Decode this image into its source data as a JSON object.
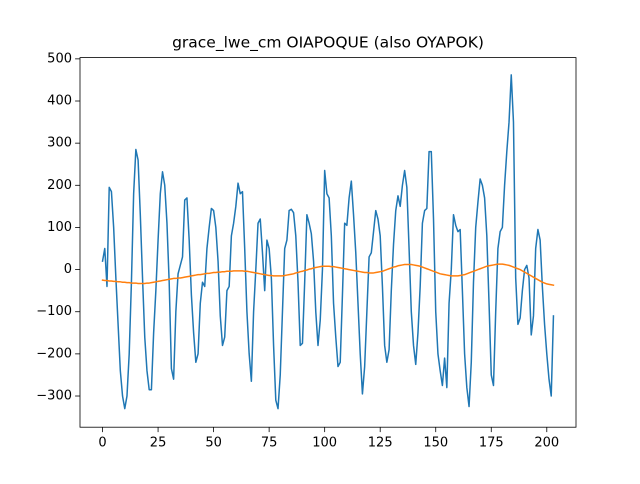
{
  "chart_data": {
    "type": "line",
    "title": "grace_lwe_cm OIAPOQUE (also OYAPOK)",
    "x": [
      0,
      1,
      2,
      3,
      4,
      5,
      6,
      7,
      8,
      9,
      10,
      11,
      12,
      13,
      14,
      15,
      16,
      17,
      18,
      19,
      20,
      21,
      22,
      23,
      24,
      25,
      26,
      27,
      28,
      29,
      30,
      31,
      32,
      33,
      34,
      35,
      36,
      37,
      38,
      39,
      40,
      41,
      42,
      43,
      44,
      45,
      46,
      47,
      48,
      49,
      50,
      51,
      52,
      53,
      54,
      55,
      56,
      57,
      58,
      59,
      60,
      61,
      62,
      63,
      64,
      65,
      66,
      67,
      68,
      69,
      70,
      71,
      72,
      73,
      74,
      75,
      76,
      77,
      78,
      79,
      80,
      81,
      82,
      83,
      84,
      85,
      86,
      87,
      88,
      89,
      90,
      91,
      92,
      93,
      94,
      95,
      96,
      97,
      98,
      99,
      100,
      101,
      102,
      103,
      104,
      105,
      106,
      107,
      108,
      109,
      110,
      111,
      112,
      113,
      114,
      115,
      116,
      117,
      118,
      119,
      120,
      121,
      122,
      123,
      124,
      125,
      126,
      127,
      128,
      129,
      130,
      131,
      132,
      133,
      134,
      135,
      136,
      137,
      138,
      139,
      140,
      141,
      142,
      143,
      144,
      145,
      146,
      147,
      148,
      149,
      150,
      151,
      152,
      153,
      154,
      155,
      156,
      157,
      158,
      159,
      160,
      161,
      162,
      163,
      164,
      165,
      166,
      167,
      168,
      169,
      170,
      171,
      172,
      173,
      174,
      175,
      176,
      177,
      178,
      179,
      180,
      181,
      182,
      183,
      184,
      185,
      186,
      187,
      188,
      189,
      190,
      191,
      192,
      193,
      194,
      195,
      196,
      197,
      198,
      199,
      200,
      201,
      202,
      203
    ],
    "series": [
      {
        "color": "#1f77b4",
        "values": [
          20,
          50,
          -40,
          195,
          185,
          100,
          -20,
          -130,
          -240,
          -300,
          -330,
          -300,
          -200,
          -30,
          180,
          285,
          260,
          130,
          -20,
          -160,
          -240,
          -285,
          -285,
          -150,
          -50,
          70,
          180,
          232,
          200,
          110,
          -30,
          -235,
          -260,
          -100,
          -10,
          10,
          30,
          165,
          170,
          70,
          -60,
          -150,
          -220,
          -200,
          -80,
          -30,
          -40,
          50,
          100,
          145,
          140,
          100,
          20,
          -110,
          -180,
          -160,
          -50,
          -40,
          80,
          110,
          150,
          205,
          180,
          185,
          50,
          -100,
          -200,
          -265,
          -100,
          0,
          110,
          120,
          40,
          -50,
          70,
          50,
          -20,
          -180,
          -310,
          -330,
          -250,
          -100,
          50,
          70,
          140,
          143,
          135,
          80,
          -30,
          -180,
          -175,
          -30,
          130,
          110,
          85,
          20,
          -100,
          -180,
          -120,
          0,
          235,
          180,
          170,
          80,
          -80,
          -160,
          -230,
          -220,
          -60,
          110,
          105,
          170,
          210,
          130,
          40,
          -80,
          -200,
          -295,
          -230,
          -100,
          30,
          40,
          90,
          140,
          120,
          80,
          -40,
          -180,
          -220,
          -190,
          -50,
          60,
          140,
          175,
          150,
          200,
          235,
          195,
          50,
          -100,
          -180,
          -225,
          -150,
          -40,
          110,
          140,
          145,
          280,
          280,
          120,
          -100,
          -200,
          -240,
          -275,
          -210,
          -280,
          -80,
          0,
          130,
          105,
          90,
          95,
          -50,
          -200,
          -280,
          -325,
          -220,
          -30,
          100,
          160,
          215,
          200,
          170,
          80,
          -80,
          -250,
          -275,
          -100,
          50,
          90,
          100,
          200,
          280,
          350,
          462,
          350,
          -20,
          -130,
          -115,
          -50,
          0,
          10,
          -20,
          -155,
          -110,
          50,
          95,
          70,
          -40,
          -130,
          -200,
          -260,
          -300,
          -110
        ]
      },
      {
        "color": "#ff7f0e",
        "values": [
          -25,
          -26,
          -26,
          -27,
          -27,
          -28,
          -28,
          -29,
          -29,
          -30,
          -30,
          -31,
          -31,
          -32,
          -32,
          -32,
          -33,
          -33,
          -33,
          -33,
          -32,
          -32,
          -31,
          -30,
          -29,
          -28,
          -27,
          -26,
          -25,
          -24,
          -23,
          -22,
          -21,
          -21,
          -20,
          -20,
          -19,
          -18,
          -17,
          -16,
          -15,
          -14,
          -13,
          -12,
          -12,
          -11,
          -10,
          -9,
          -9,
          -8,
          -7,
          -7,
          -6,
          -6,
          -5,
          -5,
          -4,
          -4,
          -4,
          -3,
          -3,
          -3,
          -3,
          -3,
          -4,
          -4,
          -5,
          -6,
          -7,
          -8,
          -9,
          -10,
          -11,
          -12,
          -13,
          -14,
          -14,
          -15,
          -15,
          -15,
          -15,
          -15,
          -14,
          -13,
          -12,
          -11,
          -10,
          -8,
          -7,
          -5,
          -4,
          -2,
          -1,
          1,
          2,
          4,
          5,
          6,
          7,
          8,
          8,
          8,
          8,
          7,
          7,
          6,
          5,
          4,
          3,
          2,
          1,
          0,
          -1,
          -2,
          -3,
          -4,
          -5,
          -6,
          -7,
          -7,
          -8,
          -8,
          -8,
          -7,
          -6,
          -5,
          -4,
          -2,
          0,
          2,
          4,
          6,
          7,
          9,
          10,
          11,
          12,
          12,
          12,
          12,
          11,
          10,
          9,
          8,
          6,
          4,
          2,
          0,
          -2,
          -4,
          -6,
          -8,
          -10,
          -11,
          -12,
          -13,
          -14,
          -15,
          -15,
          -15,
          -15,
          -14,
          -13,
          -12,
          -10,
          -8,
          -6,
          -4,
          -2,
          0,
          2,
          4,
          6,
          8,
          9,
          10,
          11,
          12,
          13,
          13,
          13,
          12,
          11,
          10,
          8,
          6,
          4,
          2,
          0,
          -3,
          -6,
          -9,
          -12,
          -15,
          -18,
          -21,
          -24,
          -27,
          -30,
          -32,
          -34,
          -35,
          -36,
          -37
        ]
      }
    ],
    "xlim": [
      -10.15,
      213.15
    ],
    "xticks": [
      0,
      25,
      50,
      75,
      100,
      125,
      150,
      175,
      200
    ],
    "ylim": [
      -374,
      503
    ],
    "yticks": [
      {
        "value": -300,
        "label": "−300"
      },
      {
        "value": -200,
        "label": "−200"
      },
      {
        "value": -100,
        "label": "−100"
      },
      0,
      100,
      200,
      300,
      400,
      500
    ],
    "grid": false
  }
}
